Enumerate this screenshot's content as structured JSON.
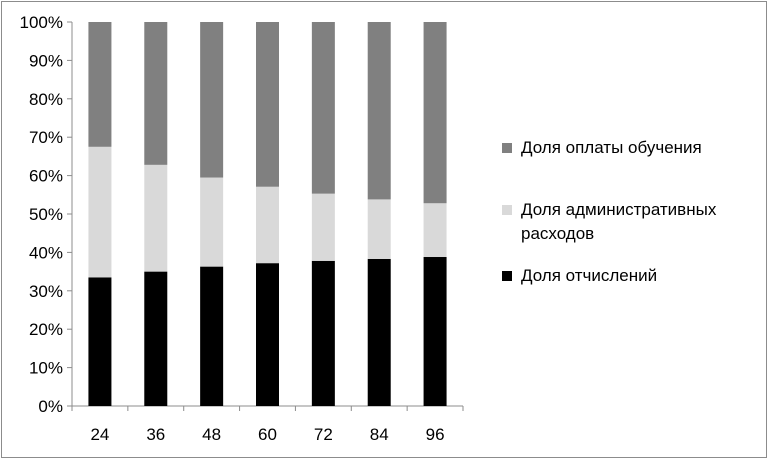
{
  "chart_data": {
    "type": "bar",
    "stacked": true,
    "percent": true,
    "categories": [
      "24",
      "36",
      "48",
      "60",
      "72",
      "84",
      "96"
    ],
    "series": [
      {
        "name": "Доля отчислений",
        "color": "#000000",
        "values": [
          33.5,
          35,
          36.3,
          37.2,
          37.8,
          38.3,
          38.8
        ]
      },
      {
        "name": "Доля административных расходов",
        "color": "#d9d9d9",
        "values": [
          34.0,
          27.8,
          23.2,
          19.9,
          17.5,
          15.5,
          14.0
        ]
      },
      {
        "name": "Доля оплаты обучения",
        "color": "#808080",
        "values": [
          32.5,
          37.2,
          40.5,
          42.9,
          44.7,
          46.2,
          47.2
        ]
      }
    ],
    "yticks": [
      "0%",
      "10%",
      "20%",
      "30%",
      "40%",
      "50%",
      "60%",
      "70%",
      "80%",
      "90%",
      "100%"
    ],
    "ylim": [
      0,
      100
    ],
    "legend": {
      "position": "right",
      "entries": [
        {
          "lines": [
            "Доля оплаты обучения"
          ],
          "color": "#808080"
        },
        {
          "lines": [
            "Доля административных",
            "расходов"
          ],
          "color": "#d9d9d9"
        },
        {
          "lines": [
            "Доля отчислений"
          ],
          "color": "#000000"
        }
      ]
    }
  }
}
